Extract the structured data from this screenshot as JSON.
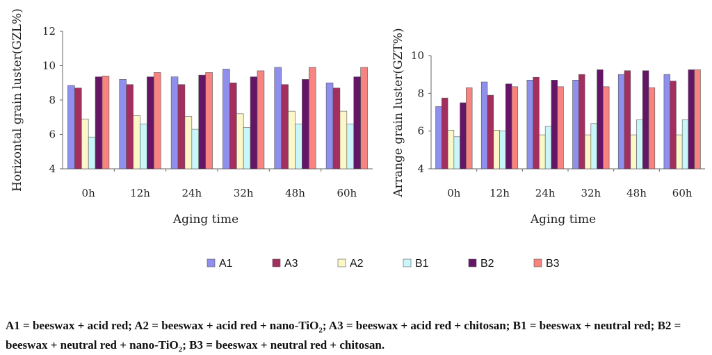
{
  "legend": [
    {
      "key": "A1",
      "color": "#8f90ee"
    },
    {
      "key": "A3",
      "color": "#a42e5e"
    },
    {
      "key": "A2",
      "color": "#fcf7c9"
    },
    {
      "key": "B1",
      "color": "#c9f6f9"
    },
    {
      "key": "B2",
      "color": "#651565"
    },
    {
      "key": "B3",
      "color": "#f78480"
    }
  ],
  "caption": {
    "text": "A1 = beeswax + acid red; A2 = beeswax + acid red + nano-TiO₂; A3 = beeswax + acid red + chitosan; B1 = beeswax + neutral red; B2 = beeswax + neutral red + nano-TiO₂; B3 = beeswax + neutral red + chitosan."
  },
  "chart_data": [
    {
      "type": "bar",
      "title": "",
      "xlabel": "Aging time",
      "ylabel": "Horizontal grain luster(GZL%)",
      "categories": [
        "0h",
        "12h",
        "24h",
        "32h",
        "48h",
        "60h"
      ],
      "ylim": [
        4,
        12
      ],
      "yticks": [
        4,
        6,
        8,
        10,
        12
      ],
      "grid": false,
      "series": [
        {
          "name": "A1",
          "values": [
            8.85,
            9.2,
            9.35,
            9.8,
            9.9,
            9.0
          ]
        },
        {
          "name": "A3",
          "values": [
            8.7,
            8.9,
            8.9,
            9.0,
            8.9,
            8.7
          ]
        },
        {
          "name": "A2",
          "values": [
            6.9,
            7.1,
            7.05,
            7.2,
            7.35,
            7.35
          ]
        },
        {
          "name": "B1",
          "values": [
            5.85,
            6.6,
            6.3,
            6.4,
            6.6,
            6.6
          ]
        },
        {
          "name": "B2",
          "values": [
            9.35,
            9.35,
            9.45,
            9.35,
            9.2,
            9.35
          ]
        },
        {
          "name": "B3",
          "values": [
            9.4,
            9.6,
            9.6,
            9.7,
            9.9,
            9.9
          ]
        }
      ]
    },
    {
      "type": "bar",
      "title": "",
      "xlabel": "Aging time",
      "ylabel": "Arrange grain luster(GZT%)",
      "categories": [
        "0h",
        "12h",
        "24h",
        "32h",
        "48h",
        "60h"
      ],
      "ylim": [
        4,
        10
      ],
      "yticks": [
        4,
        6,
        8,
        10
      ],
      "grid": false,
      "series": [
        {
          "name": "A1",
          "values": [
            7.3,
            8.6,
            8.7,
            8.7,
            9.0,
            9.0
          ]
        },
        {
          "name": "A3",
          "values": [
            7.75,
            7.9,
            8.85,
            9.0,
            9.2,
            8.65
          ]
        },
        {
          "name": "A2",
          "values": [
            6.05,
            6.05,
            5.8,
            5.8,
            5.8,
            5.8
          ]
        },
        {
          "name": "B1",
          "values": [
            5.7,
            6.0,
            6.25,
            6.4,
            6.6,
            6.6
          ]
        },
        {
          "name": "B2",
          "values": [
            7.5,
            8.5,
            8.7,
            9.25,
            9.2,
            9.25
          ]
        },
        {
          "name": "B3",
          "values": [
            8.3,
            8.35,
            8.35,
            8.35,
            8.3,
            9.25
          ]
        }
      ]
    }
  ]
}
